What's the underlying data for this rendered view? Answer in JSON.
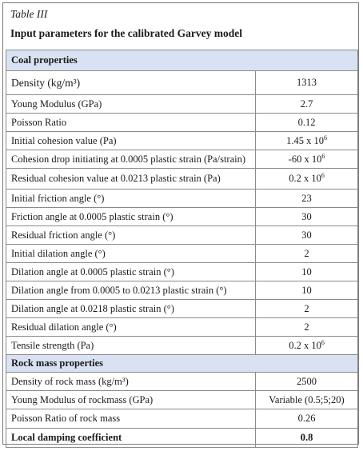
{
  "caption": {
    "label": "Table III",
    "title": "Input parameters for the calibrated Garvey model"
  },
  "sections": {
    "coal": "Coal properties",
    "rock": "Rock mass properties"
  },
  "rows": [
    {
      "param": "Density (kg/m³)",
      "value": "1313",
      "pre": "",
      "exp": ""
    },
    {
      "param": "Young Modulus (GPa)",
      "value": "2.7",
      "pre": "",
      "exp": ""
    },
    {
      "param": "Poisson Ratio",
      "value": "0.12",
      "pre": "",
      "exp": ""
    },
    {
      "param": "Initial cohesion value (Pa)",
      "value": "",
      "pre": "1.45 x 10",
      "exp": "6"
    },
    {
      "param": "Cohesion drop initiating at 0.0005 plastic strain (Pa/strain)",
      "value": "",
      "pre": "-60 x 10",
      "exp": "6"
    },
    {
      "param": "Residual cohesion value at 0.0213 plastic strain (Pa)",
      "value": "",
      "pre": "0.2 x 10",
      "exp": "6"
    },
    {
      "param": "Initial friction angle (°)",
      "value": "23",
      "pre": "",
      "exp": ""
    },
    {
      "param": "Friction angle at 0.0005 plastic strain (°)",
      "value": "30",
      "pre": "",
      "exp": ""
    },
    {
      "param": "Residual friction angle (°)",
      "value": "30",
      "pre": "",
      "exp": ""
    },
    {
      "param": "Initial dilation angle (°)",
      "value": "2",
      "pre": "",
      "exp": ""
    },
    {
      "param": "Dilation angle at 0.0005 plastic strain (°)",
      "value": "10",
      "pre": "",
      "exp": ""
    },
    {
      "param": "Dilation angle from 0.0005 to 0.0213 plastic strain (°)",
      "value": "10",
      "pre": "",
      "exp": ""
    },
    {
      "param": "Dilation angle at 0.0218 plastic strain (°)",
      "value": "2",
      "pre": "",
      "exp": ""
    },
    {
      "param": "Residual dilation angle (°)",
      "value": "2",
      "pre": "",
      "exp": ""
    },
    {
      "param": "Tensile strength (Pa)",
      "value": "",
      "pre": "0.2 x 10",
      "exp": "6"
    },
    {
      "param": "Density of rock mass (kg/m³)",
      "value": "2500",
      "pre": "",
      "exp": ""
    },
    {
      "param": "Young Modulus of rockmass (GPa)",
      "value": "Variable (0.5;5;20)",
      "pre": "",
      "exp": ""
    },
    {
      "param": "Poisson Ratio of rock mass",
      "value": "0.26",
      "pre": "",
      "exp": ""
    },
    {
      "param": "Local damping coefficient",
      "value": "0.8",
      "pre": "",
      "exp": ""
    }
  ]
}
